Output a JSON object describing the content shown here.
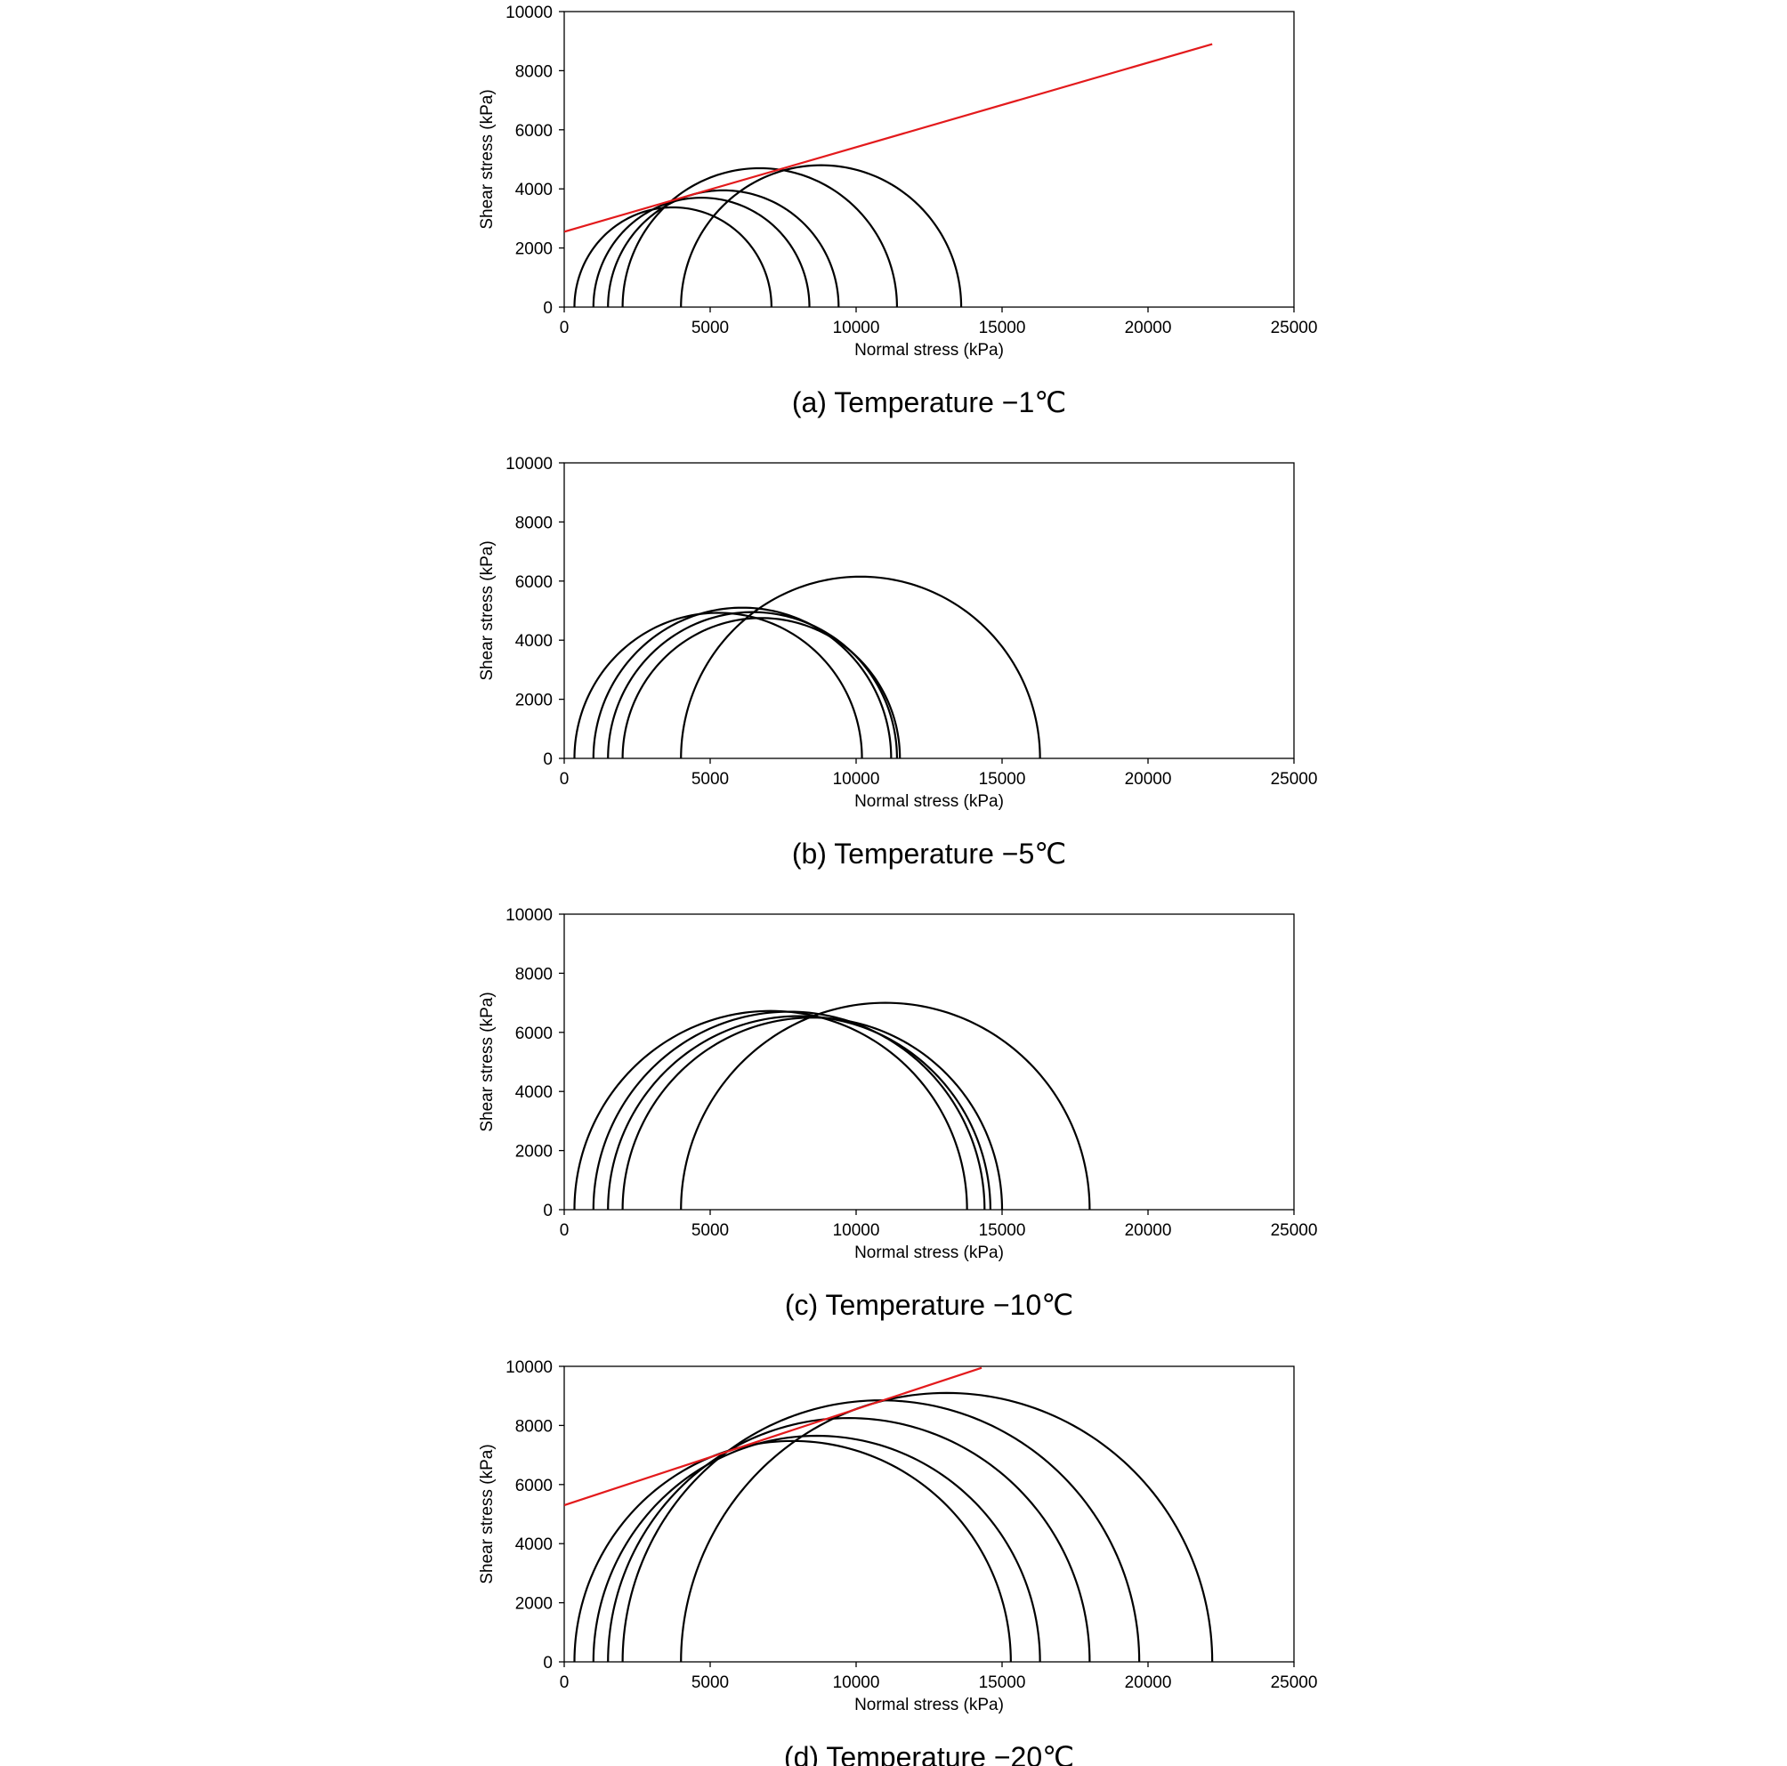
{
  "chart_data": [
    {
      "type": "line",
      "caption": "(a)  Temperature  −1℃",
      "xlabel": "Normal stress (kPa)",
      "ylabel": "Shear stress (kPa)",
      "xlim": [
        0,
        25000
      ],
      "ylim": [
        0,
        10000
      ],
      "xticks": [
        "0",
        "5000",
        "10000",
        "15000",
        "20000",
        "25000"
      ],
      "yticks": [
        "0",
        "2000",
        "4000",
        "6000",
        "8000",
        "10000"
      ],
      "circles": [
        {
          "sigma3": 350,
          "sigma1": 7100
        },
        {
          "sigma3": 1000,
          "sigma1": 8400
        },
        {
          "sigma3": 1500,
          "sigma1": 9400
        },
        {
          "sigma3": 2000,
          "sigma1": 11400
        },
        {
          "sigma3": 4000,
          "sigma1": 13600
        }
      ],
      "envelope": {
        "x": [
          0,
          22200
        ],
        "y": [
          2550,
          8900
        ],
        "color": "#e31a1c"
      }
    },
    {
      "type": "line",
      "caption": "(b)  Temperature  −5℃",
      "xlabel": "Normal stress (kPa)",
      "ylabel": "Shear stress (kPa)",
      "xlim": [
        0,
        25000
      ],
      "ylim": [
        0,
        10000
      ],
      "xticks": [
        "0",
        "5000",
        "10000",
        "15000",
        "20000",
        "25000"
      ],
      "yticks": [
        "0",
        "2000",
        "4000",
        "6000",
        "8000",
        "10000"
      ],
      "circles": [
        {
          "sigma3": 350,
          "sigma1": 10200
        },
        {
          "sigma3": 1000,
          "sigma1": 11200
        },
        {
          "sigma3": 1500,
          "sigma1": 11400
        },
        {
          "sigma3": 2000,
          "sigma1": 11500
        },
        {
          "sigma3": 4000,
          "sigma1": 16300
        }
      ]
    },
    {
      "type": "line",
      "caption": "(c)  Temperature  −10℃",
      "xlabel": "Normal stress (kPa)",
      "ylabel": "Shear stress (kPa)",
      "xlim": [
        0,
        25000
      ],
      "ylim": [
        0,
        10000
      ],
      "xticks": [
        "0",
        "5000",
        "10000",
        "15000",
        "20000",
        "25000"
      ],
      "yticks": [
        "0",
        "2000",
        "4000",
        "6000",
        "8000",
        "10000"
      ],
      "circles": [
        {
          "sigma3": 350,
          "sigma1": 13800
        },
        {
          "sigma3": 1000,
          "sigma1": 14400
        },
        {
          "sigma3": 1500,
          "sigma1": 14600
        },
        {
          "sigma3": 2000,
          "sigma1": 15000
        },
        {
          "sigma3": 4000,
          "sigma1": 18000
        }
      ]
    },
    {
      "type": "line",
      "caption": "(d)  Temperature  −20℃",
      "xlabel": "Normal stress (kPa)",
      "ylabel": "Shear stress (kPa)",
      "xlim": [
        0,
        25000
      ],
      "ylim": [
        0,
        10000
      ],
      "xticks": [
        "0",
        "5000",
        "10000",
        "15000",
        "20000",
        "25000"
      ],
      "yticks": [
        "0",
        "2000",
        "4000",
        "6000",
        "8000",
        "10000"
      ],
      "circles": [
        {
          "sigma3": 350,
          "sigma1": 15300
        },
        {
          "sigma3": 1000,
          "sigma1": 16300
        },
        {
          "sigma3": 1500,
          "sigma1": 18000
        },
        {
          "sigma3": 2000,
          "sigma1": 19700
        },
        {
          "sigma3": 4000,
          "sigma1": 22200
        }
      ],
      "envelope": {
        "x": [
          0,
          14300
        ],
        "y": [
          5300,
          9950
        ],
        "color": "#e31a1c"
      }
    }
  ]
}
